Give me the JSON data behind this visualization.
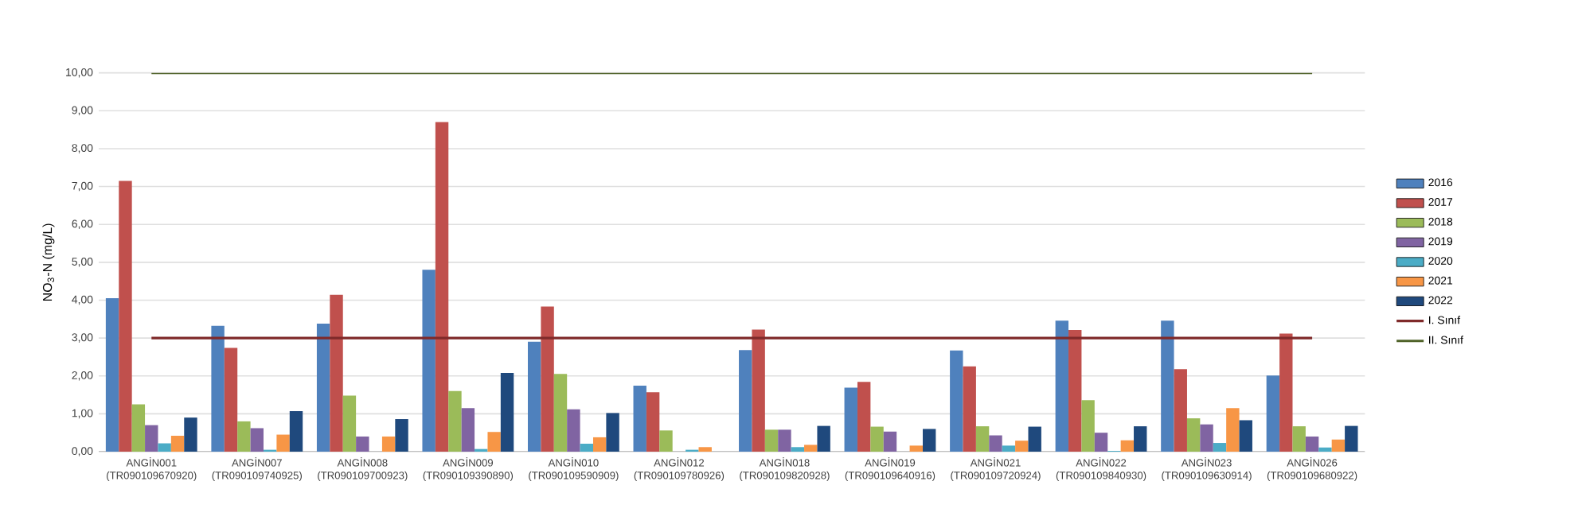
{
  "chart_data": {
    "type": "bar",
    "ylabel": "NO$_{3}$-N (mg/L)",
    "categories": [
      "ANGİN001 (TR090109670920)",
      "ANGİN007 (TR090109740925)",
      "ANGİN008 (TR090109700923)",
      "ANGİN009 (TR090109390890)",
      "ANGİN010 (TR090109590909)",
      "ANGİN012 (TR090109780926)",
      "ANGİN018 (TR090109820928)",
      "ANGİN019 (TR090109640916)",
      "ANGİN021 (TR090109720924)",
      "ANGİN022 (TR090109840930)",
      "ANGİN023 (TR090109630914)",
      "ANGİN026 (TR090109680922)"
    ],
    "series": [
      {
        "name": "2016",
        "color": "#4f81bd",
        "values": [
          4.05,
          3.32,
          3.38,
          4.8,
          2.9,
          1.74,
          2.68,
          1.69,
          2.67,
          3.46,
          3.46,
          2.01
        ]
      },
      {
        "name": "2017",
        "color": "#c0504d",
        "values": [
          7.15,
          2.74,
          4.14,
          8.7,
          3.83,
          1.57,
          3.22,
          1.84,
          2.25,
          3.21,
          2.18,
          3.12
        ]
      },
      {
        "name": "2018",
        "color": "#9bbb59",
        "values": [
          1.25,
          0.8,
          1.48,
          1.6,
          2.05,
          0.56,
          0.58,
          0.66,
          0.67,
          1.36,
          0.88,
          0.67
        ]
      },
      {
        "name": "2019",
        "color": "#8064a2",
        "values": [
          0.7,
          0.62,
          0.4,
          1.15,
          1.12,
          null,
          0.58,
          0.53,
          0.43,
          0.5,
          0.72,
          0.4
        ]
      },
      {
        "name": "2020",
        "color": "#4bacc6",
        "values": [
          0.22,
          0.05,
          null,
          0.07,
          0.21,
          0.05,
          0.12,
          null,
          0.16,
          0.02,
          0.23,
          0.11
        ]
      },
      {
        "name": "2021",
        "color": "#f79646",
        "values": [
          0.42,
          0.45,
          0.4,
          0.52,
          0.38,
          0.12,
          0.18,
          0.16,
          0.29,
          0.3,
          1.15,
          0.32
        ]
      },
      {
        "name": "2022",
        "color": "#1f497d",
        "values": [
          0.9,
          1.07,
          0.86,
          2.08,
          1.02,
          null,
          0.68,
          0.6,
          0.66,
          0.67,
          0.83,
          0.68
        ]
      },
      {
        "name": "I. Sınıf",
        "type": "line",
        "color": "#7f2a2a",
        "values": [
          3,
          3,
          3,
          3,
          3,
          3,
          3,
          3,
          3,
          3,
          3,
          3
        ]
      },
      {
        "name": "II. Sınıf",
        "type": "line",
        "color": "#4f6228",
        "values": [
          10,
          10,
          10,
          10,
          10,
          10,
          10,
          10,
          10,
          10,
          10,
          10
        ]
      }
    ],
    "ylim": [
      0,
      10
    ],
    "yticks": [
      {
        "value": 0,
        "label": "0,00"
      },
      {
        "value": 1,
        "label": "1,00"
      },
      {
        "value": 2,
        "label": "2,00"
      },
      {
        "value": 3,
        "label": "3,00"
      },
      {
        "value": 4,
        "label": "4,00"
      },
      {
        "value": 5,
        "label": "5,00"
      },
      {
        "value": 6,
        "label": "6,00"
      },
      {
        "value": 7,
        "label": "7,00"
      },
      {
        "value": 8,
        "label": "8,00"
      },
      {
        "value": 9,
        "label": "9,00"
      },
      {
        "value": 10,
        "label": "10,00"
      }
    ],
    "grid": "y",
    "legend": "right",
    "marker": "none",
    "line_style": "solid"
  }
}
